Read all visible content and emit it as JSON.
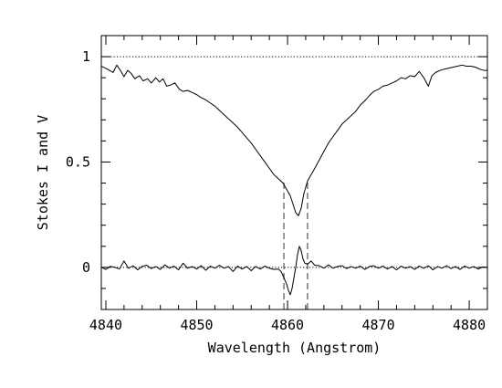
{
  "chart_data": {
    "type": "line",
    "title": "",
    "xlabel": "Wavelength (Angstrom)",
    "ylabel": "Stokes I and V",
    "xlim": [
      4839.5,
      4882
    ],
    "ylim": [
      -0.2,
      1.1
    ],
    "x_ticks": [
      4840,
      4850,
      4860,
      4870,
      4880
    ],
    "y_ticks": [
      0,
      0.5,
      1
    ],
    "y_tick_labels": [
      "0",
      "0.5",
      "1"
    ],
    "grid": false,
    "legend": "none",
    "reference_lines": [
      {
        "axis": "y",
        "value": 1.0,
        "style": "dotted"
      },
      {
        "axis": "y",
        "value": 0.0,
        "style": "dotted"
      }
    ],
    "marker_lines": [
      {
        "axis": "x",
        "value": 4859.6,
        "y_from": -0.2,
        "y_to": 0.42,
        "style": "dashed"
      },
      {
        "axis": "x",
        "value": 4862.2,
        "y_from": -0.2,
        "y_to": 0.42,
        "style": "dashed"
      }
    ],
    "series": [
      {
        "key": "stokes-i",
        "color": "#000000",
        "x": [
          4839.5,
          4840.2,
          4840.8,
          4841.2,
          4841.6,
          4842.0,
          4842.4,
          4842.8,
          4843.2,
          4843.7,
          4844.1,
          4844.6,
          4845.0,
          4845.5,
          4845.9,
          4846.3,
          4846.7,
          4847.1,
          4847.6,
          4848.1,
          4848.5,
          4849.0,
          4849.5,
          4850.0,
          4850.5,
          4851.0,
          4851.5,
          4852.0,
          4852.5,
          4853.0,
          4853.5,
          4854.0,
          4854.5,
          4855.0,
          4855.5,
          4856.0,
          4856.5,
          4857.0,
          4857.5,
          4858.0,
          4858.5,
          4859.0,
          4859.5,
          4859.9,
          4860.3,
          4860.6,
          4860.9,
          4861.2,
          4861.5,
          4861.8,
          4862.2,
          4862.6,
          4863.0,
          4863.5,
          4864.0,
          4864.5,
          4865.0,
          4865.5,
          4866.0,
          4866.5,
          4867.0,
          4867.5,
          4868.0,
          4868.5,
          4869.0,
          4869.5,
          4870.0,
          4870.5,
          4871.0,
          4871.5,
          4872.0,
          4872.5,
          4873.0,
          4873.5,
          4874.0,
          4874.5,
          4875.0,
          4875.5,
          4875.9,
          4876.3,
          4876.8,
          4877.2,
          4877.7,
          4878.2,
          4878.7,
          4879.2,
          4879.7,
          4880.2,
          4880.7,
          4881.2,
          4881.6,
          4882.0
        ],
        "values": [
          0.955,
          0.94,
          0.925,
          0.96,
          0.935,
          0.905,
          0.935,
          0.92,
          0.895,
          0.91,
          0.885,
          0.895,
          0.875,
          0.9,
          0.88,
          0.895,
          0.86,
          0.865,
          0.875,
          0.845,
          0.835,
          0.84,
          0.83,
          0.82,
          0.805,
          0.795,
          0.78,
          0.765,
          0.745,
          0.725,
          0.705,
          0.685,
          0.665,
          0.64,
          0.615,
          0.59,
          0.56,
          0.53,
          0.5,
          0.47,
          0.44,
          0.42,
          0.4,
          0.37,
          0.34,
          0.3,
          0.26,
          0.245,
          0.28,
          0.35,
          0.41,
          0.44,
          0.47,
          0.51,
          0.55,
          0.59,
          0.62,
          0.65,
          0.68,
          0.7,
          0.72,
          0.74,
          0.77,
          0.79,
          0.815,
          0.835,
          0.845,
          0.86,
          0.865,
          0.875,
          0.885,
          0.9,
          0.895,
          0.91,
          0.905,
          0.93,
          0.9,
          0.86,
          0.91,
          0.925,
          0.935,
          0.94,
          0.945,
          0.95,
          0.955,
          0.96,
          0.955,
          0.955,
          0.95,
          0.94,
          0.935,
          0.935
        ]
      },
      {
        "key": "stokes-v",
        "color": "#000000",
        "x": [
          4839.5,
          4840.0,
          4840.5,
          4841.0,
          4841.5,
          4842.0,
          4842.5,
          4843.0,
          4843.5,
          4844.0,
          4844.5,
          4845.0,
          4845.5,
          4846.0,
          4846.5,
          4847.0,
          4847.5,
          4848.0,
          4848.5,
          4849.0,
          4849.5,
          4850.0,
          4850.5,
          4851.0,
          4851.5,
          4852.0,
          4852.5,
          4853.0,
          4853.5,
          4854.0,
          4854.5,
          4855.0,
          4855.5,
          4856.0,
          4856.5,
          4857.0,
          4857.5,
          4858.0,
          4858.5,
          4859.0,
          4859.3,
          4859.6,
          4859.9,
          4860.1,
          4860.3,
          4860.5,
          4860.7,
          4860.9,
          4861.1,
          4861.3,
          4861.5,
          4861.7,
          4861.9,
          4862.2,
          4862.6,
          4863.0,
          4863.5,
          4864.0,
          4864.5,
          4865.0,
          4865.5,
          4866.0,
          4866.5,
          4867.0,
          4867.5,
          4868.0,
          4868.5,
          4869.0,
          4869.5,
          4870.0,
          4870.5,
          4871.0,
          4871.5,
          4872.0,
          4872.5,
          4873.0,
          4873.5,
          4874.0,
          4874.5,
          4875.0,
          4875.5,
          4876.0,
          4876.5,
          4877.0,
          4877.5,
          4878.0,
          4878.5,
          4879.0,
          4879.5,
          4880.0,
          4880.5,
          4881.0,
          4881.5,
          4882.0
        ],
        "values": [
          0.0,
          -0.01,
          0.005,
          0.0,
          -0.008,
          0.03,
          -0.005,
          0.008,
          -0.012,
          0.005,
          0.01,
          -0.006,
          0.004,
          -0.01,
          0.012,
          -0.004,
          0.006,
          -0.012,
          0.02,
          -0.004,
          0.004,
          -0.008,
          0.008,
          -0.014,
          0.006,
          -0.004,
          0.01,
          -0.004,
          0.004,
          -0.02,
          0.006,
          -0.008,
          0.004,
          -0.016,
          0.004,
          -0.008,
          0.006,
          -0.004,
          -0.01,
          -0.008,
          -0.02,
          -0.05,
          -0.08,
          -0.11,
          -0.13,
          -0.1,
          -0.05,
          0.0,
          0.06,
          0.1,
          0.08,
          0.04,
          0.02,
          0.015,
          0.03,
          0.01,
          0.008,
          -0.004,
          0.012,
          -0.004,
          0.004,
          0.008,
          -0.006,
          0.004,
          -0.004,
          0.006,
          -0.01,
          0.004,
          0.008,
          -0.004,
          0.006,
          -0.008,
          0.004,
          -0.012,
          0.006,
          -0.004,
          0.004,
          -0.01,
          0.006,
          -0.004,
          0.008,
          -0.012,
          0.004,
          -0.004,
          0.008,
          -0.006,
          0.004,
          -0.01,
          0.006,
          -0.004,
          0.004,
          -0.008,
          0.002,
          0.0
        ]
      }
    ]
  }
}
